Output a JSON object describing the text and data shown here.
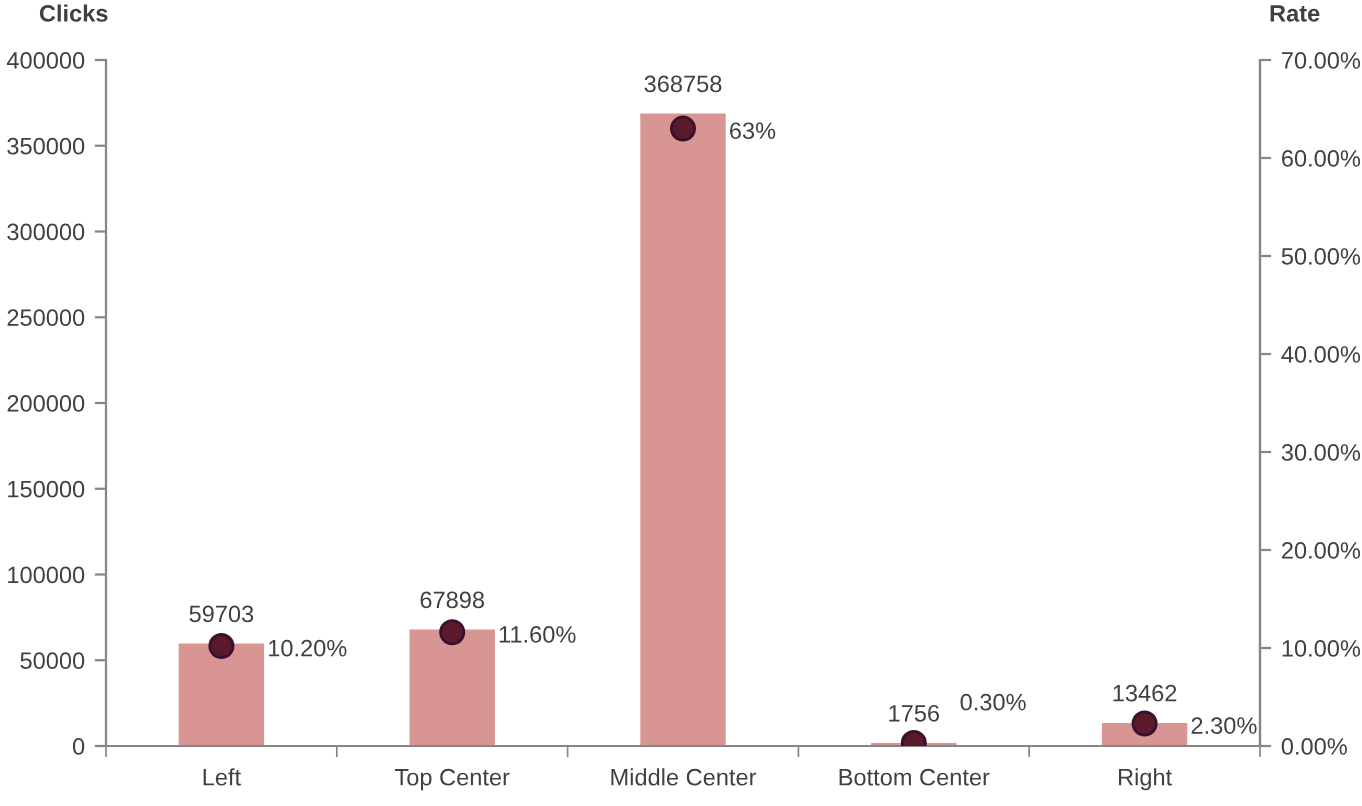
{
  "chart_data": {
    "type": "bar",
    "ylabel": "Clicks",
    "y2label": "Rate",
    "categories": [
      "Left",
      "Top Center",
      "Middle Center",
      "Bottom Center",
      "Right"
    ],
    "series": [
      {
        "color": "#d99594",
        "values": [
          59703,
          67898,
          368758,
          1756,
          13462
        ],
        "value_labels": [
          "59703",
          "67898",
          "368758",
          "1756",
          "13462"
        ]
      },
      {
        "type": "scatter",
        "axis": "y2",
        "color": "#5b1a2b",
        "marker": "circle",
        "values": [
          10.2,
          11.6,
          63,
          0.3,
          2.3
        ],
        "value_labels": [
          "10.20%",
          "11.60%",
          "63%",
          "0.30%",
          "2.30%"
        ]
      }
    ],
    "ylim": [
      0,
      400000
    ],
    "yticks": [
      0,
      50000,
      100000,
      150000,
      200000,
      250000,
      300000,
      350000,
      400000
    ],
    "y2lim": [
      0,
      70
    ],
    "y2ticks": [
      {
        "value": 0,
        "label": "0.00%"
      },
      {
        "value": 10,
        "label": "10.00%"
      },
      {
        "value": 20,
        "label": "20.00%"
      },
      {
        "value": 30,
        "label": "30.00%"
      },
      {
        "value": 40,
        "label": "40.00%"
      },
      {
        "value": 50,
        "label": "50.00%"
      },
      {
        "value": 60,
        "label": "60.00%"
      },
      {
        "value": 70,
        "label": "70.00%"
      }
    ]
  }
}
